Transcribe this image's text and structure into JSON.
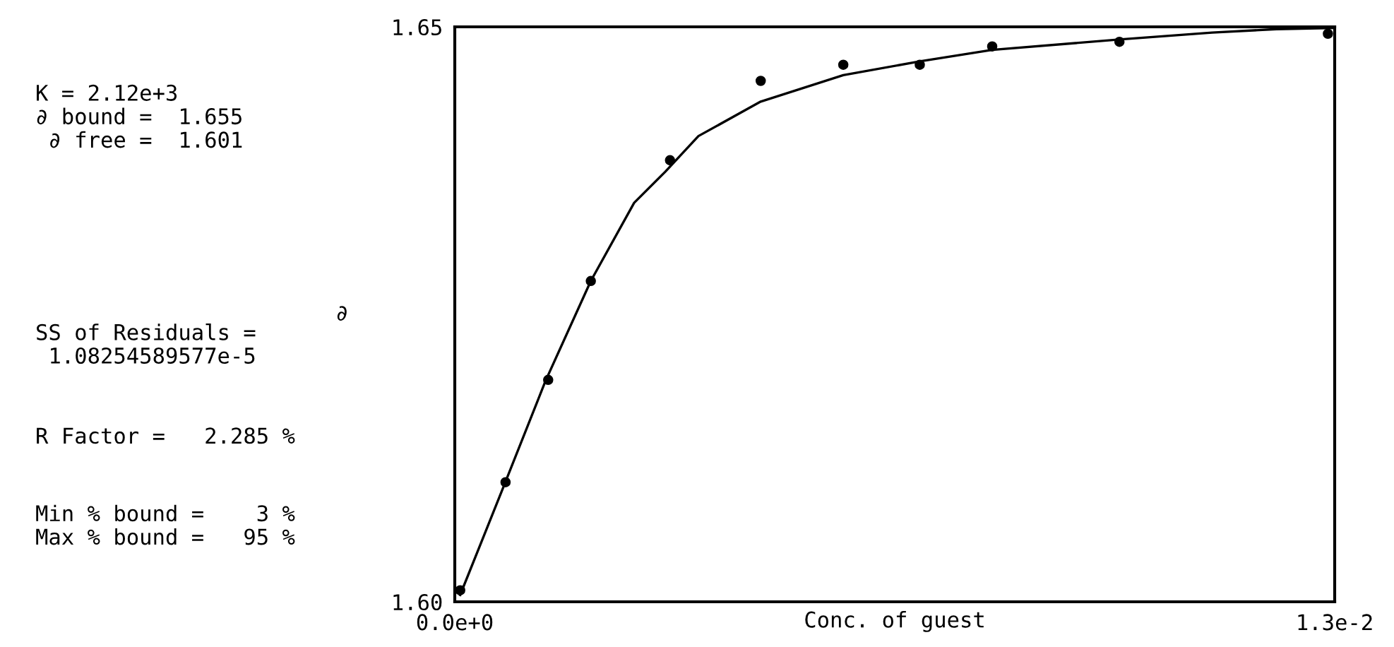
{
  "chart_data": {
    "type": "scatter",
    "xlabel": "Conc. of guest",
    "ylabel": "∂",
    "xlim": [
      0,
      0.013
    ],
    "ylim": [
      1.6,
      1.65
    ],
    "xticks": [
      {
        "value": 0,
        "label": "0.0e+0"
      },
      {
        "value": 0.013,
        "label": "1.3e-2"
      }
    ],
    "yticks": [
      {
        "value": 1.6,
        "label": "1.60"
      },
      1.65
    ],
    "legend": false,
    "annotations": [
      "K = 2.12e+3\n∂ bound =  1.655\n ∂ free =  1.601",
      "SS of Residuals =\n 1.08254589577e-5",
      "R Factor =   2.285 %",
      "Min % bound =    3 %\nMax % bound =   95 %"
    ],
    "series": [
      {
        "marker": "circle",
        "color": "#000000",
        "x": [
          8e-05,
          0.00075,
          0.00138,
          0.00201,
          0.00318,
          0.00452,
          0.00574,
          0.00687,
          0.00794,
          0.00982,
          0.0129
        ],
        "values": [
          1.601,
          1.6104,
          1.6193,
          1.6279,
          1.6384,
          1.6453,
          1.6467,
          1.6467,
          1.6483,
          1.6487,
          1.6494
        ]
      },
      {
        "type": "line",
        "marker": "none",
        "color": "#000000",
        "line_style": "solid",
        "x": [
          8e-05,
          0.00072,
          0.00134,
          0.00201,
          0.00265,
          0.00311,
          0.0036,
          0.00452,
          0.00574,
          0.00687,
          0.00794,
          0.00982,
          0.01119,
          0.01214,
          0.013
        ],
        "values": [
          1.6006,
          1.61,
          1.6192,
          1.6279,
          1.6347,
          1.6374,
          1.6405,
          1.6435,
          1.6458,
          1.647,
          1.648,
          1.6489,
          1.6495,
          1.6498,
          1.6499
        ]
      }
    ]
  }
}
